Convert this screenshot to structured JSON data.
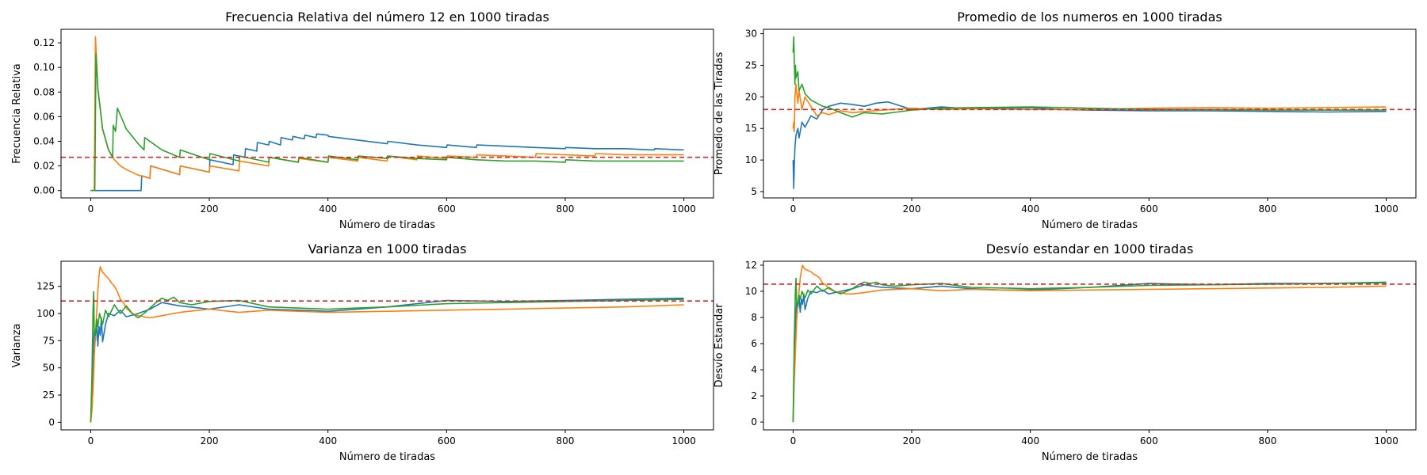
{
  "chart_data": [
    {
      "type": "line",
      "title": "Frecuencia Relativa del número 12 en 1000 tiradas",
      "xlabel": "Número de tiradas",
      "ylabel": "Frecuencia Relativa",
      "xlim": [
        -50,
        1050
      ],
      "ylim": [
        -0.006,
        0.131
      ],
      "xticks": [
        0,
        200,
        400,
        600,
        800,
        1000
      ],
      "yticks": [
        0.0,
        0.02,
        0.04,
        0.06,
        0.08,
        0.1,
        0.12
      ],
      "ytick_labels": [
        "0.00",
        "0.02",
        "0.04",
        "0.06",
        "0.08",
        "0.10",
        "0.12"
      ],
      "reference_line": {
        "y": 0.027,
        "color": "#d62728",
        "style": "dashed"
      },
      "series": [
        {
          "color": "#1f77b4",
          "x": [
            0,
            85,
            86,
            100,
            101,
            150,
            151,
            200,
            201,
            240,
            241,
            260,
            261,
            280,
            281,
            300,
            301,
            320,
            321,
            340,
            341,
            360,
            361,
            380,
            381,
            400,
            401,
            450,
            500,
            501,
            550,
            600,
            601,
            650,
            651,
            700,
            750,
            800,
            801,
            850,
            900,
            950,
            951,
            1000
          ],
          "y": [
            0,
            0,
            0.012,
            0.01,
            0.02,
            0.013,
            0.02,
            0.015,
            0.025,
            0.021,
            0.029,
            0.027,
            0.034,
            0.032,
            0.039,
            0.037,
            0.04,
            0.037,
            0.043,
            0.041,
            0.044,
            0.042,
            0.045,
            0.043,
            0.046,
            0.045,
            0.044,
            0.041,
            0.038,
            0.04,
            0.037,
            0.035,
            0.037,
            0.035,
            0.037,
            0.036,
            0.035,
            0.034,
            0.035,
            0.034,
            0.034,
            0.033,
            0.034,
            0.033
          ]
        },
        {
          "color": "#ff7f0e",
          "x": [
            0,
            6,
            8,
            12,
            20,
            30,
            40,
            50,
            60,
            80,
            100,
            101,
            150,
            151,
            200,
            201,
            250,
            251,
            300,
            301,
            350,
            351,
            400,
            401,
            450,
            451,
            500,
            501,
            550,
            551,
            600,
            601,
            650,
            651,
            700,
            750,
            751,
            800,
            850,
            851,
            900,
            950,
            1000
          ],
          "y": [
            0,
            0,
            0.125,
            0.083,
            0.05,
            0.033,
            0.025,
            0.02,
            0.017,
            0.0125,
            0.01,
            0.02,
            0.013,
            0.02,
            0.015,
            0.02,
            0.016,
            0.024,
            0.02,
            0.027,
            0.023,
            0.026,
            0.023,
            0.027,
            0.024,
            0.027,
            0.024,
            0.028,
            0.025,
            0.028,
            0.026,
            0.028,
            0.027,
            0.029,
            0.028,
            0.027,
            0.03,
            0.029,
            0.028,
            0.03,
            0.029,
            0.029,
            0.029
          ]
        },
        {
          "color": "#2ca02c",
          "x": [
            0,
            7,
            9,
            12,
            20,
            30,
            37,
            38,
            41,
            42,
            45,
            60,
            80,
            90,
            91,
            120,
            150,
            151,
            200,
            201,
            250,
            251,
            300,
            301,
            350,
            351,
            400,
            401,
            450,
            451,
            500,
            501,
            550,
            600,
            601,
            650,
            700,
            750,
            800,
            801,
            850,
            900,
            950,
            1000
          ],
          "y": [
            0,
            0,
            0.111,
            0.083,
            0.05,
            0.033,
            0.027,
            0.053,
            0.049,
            0.048,
            0.067,
            0.05,
            0.038,
            0.033,
            0.043,
            0.033,
            0.027,
            0.033,
            0.025,
            0.03,
            0.024,
            0.028,
            0.023,
            0.027,
            0.023,
            0.027,
            0.023,
            0.028,
            0.025,
            0.028,
            0.026,
            0.028,
            0.026,
            0.025,
            0.027,
            0.025,
            0.024,
            0.024,
            0.023,
            0.025,
            0.024,
            0.024,
            0.024,
            0.024
          ]
        }
      ]
    },
    {
      "type": "line",
      "title": "Promedio de los numeros en 1000 tiradas",
      "xlabel": "Número de tiradas",
      "ylabel": "Promedio de las Tiradas",
      "xlim": [
        -50,
        1050
      ],
      "ylim": [
        4.0,
        30.7
      ],
      "xticks": [
        0,
        200,
        400,
        600,
        800,
        1000
      ],
      "yticks": [
        5,
        10,
        15,
        20,
        25,
        30
      ],
      "ytick_labels": [
        "5",
        "10",
        "15",
        "20",
        "25",
        "30"
      ],
      "reference_line": {
        "y": 18.0,
        "color": "#d62728",
        "style": "dashed"
      },
      "series": [
        {
          "color": "#1f77b4",
          "x": [
            0,
            1,
            2,
            3,
            5,
            8,
            10,
            15,
            20,
            30,
            40,
            50,
            60,
            80,
            100,
            120,
            140,
            160,
            180,
            200,
            250,
            300,
            350,
            400,
            450,
            500,
            600,
            700,
            800,
            900,
            1000
          ],
          "y": [
            10,
            5.5,
            9,
            12,
            14,
            15,
            13.5,
            16,
            15.2,
            17,
            16.5,
            18,
            18.5,
            19,
            18.8,
            18.5,
            19,
            19.2,
            18.6,
            18,
            18.4,
            18.1,
            18.2,
            18.3,
            18.0,
            17.9,
            17.8,
            17.8,
            17.7,
            17.6,
            17.7
          ]
        },
        {
          "color": "#ff7f0e",
          "x": [
            0,
            1,
            2,
            3,
            5,
            8,
            10,
            15,
            20,
            30,
            40,
            50,
            60,
            80,
            100,
            150,
            200,
            250,
            300,
            400,
            500,
            600,
            700,
            800,
            900,
            1000
          ],
          "y": [
            15,
            16,
            14.5,
            20,
            22,
            19,
            21,
            18,
            20,
            18.5,
            17,
            17.5,
            17.2,
            17.8,
            17.5,
            17.9,
            18.2,
            18.0,
            18.1,
            18.0,
            18.0,
            18.2,
            18.3,
            18.2,
            18.3,
            18.4
          ]
        },
        {
          "color": "#2ca02c",
          "x": [
            0,
            1,
            2,
            3,
            4,
            5,
            8,
            10,
            15,
            20,
            30,
            40,
            50,
            60,
            80,
            100,
            120,
            150,
            200,
            250,
            300,
            400,
            500,
            600,
            700,
            800,
            900,
            1000
          ],
          "y": [
            27,
            29.5,
            26,
            22,
            25,
            23,
            24,
            21,
            22,
            20.5,
            19.5,
            19,
            18.5,
            18.3,
            17.5,
            16.8,
            17.5,
            17.3,
            17.9,
            18.2,
            18.3,
            18.4,
            18.2,
            18.0,
            18.0,
            17.9,
            17.9,
            17.9
          ]
        }
      ]
    },
    {
      "type": "line",
      "title": "Varianza en 1000 tiradas",
      "xlabel": "Número de tiradas",
      "ylabel": "Varianza",
      "xlim": [
        -50,
        1050
      ],
      "ylim": [
        -7,
        148
      ],
      "xticks": [
        0,
        200,
        400,
        600,
        800,
        1000
      ],
      "yticks": [
        0,
        25,
        50,
        75,
        100,
        125
      ],
      "ytick_labels": [
        "0",
        "25",
        "50",
        "75",
        "100",
        "125"
      ],
      "reference_line": {
        "y": 111.5,
        "color": "#d62728",
        "style": "dashed"
      },
      "series": [
        {
          "color": "#1f77b4",
          "x": [
            0,
            2,
            4,
            6,
            8,
            10,
            12,
            14,
            16,
            18,
            20,
            25,
            30,
            40,
            50,
            60,
            80,
            100,
            120,
            150,
            200,
            250,
            300,
            350,
            400,
            450,
            500,
            600,
            700,
            800,
            900,
            1000
          ],
          "y": [
            0,
            20,
            60,
            85,
            75,
            95,
            70,
            88,
            80,
            96,
            74,
            90,
            100,
            98,
            103,
            97,
            100,
            104,
            110,
            107,
            104,
            108,
            104,
            103,
            102,
            104,
            106,
            112,
            111,
            112,
            113,
            114
          ]
        },
        {
          "color": "#ff7f0e",
          "x": [
            0,
            2,
            4,
            6,
            8,
            10,
            12,
            14,
            16,
            18,
            20,
            25,
            30,
            35,
            40,
            45,
            50,
            55,
            60,
            70,
            80,
            90,
            100,
            120,
            150,
            200,
            250,
            300,
            400,
            500,
            600,
            700,
            800,
            900,
            1000
          ],
          "y": [
            0,
            10,
            30,
            60,
            80,
            100,
            120,
            135,
            143,
            140,
            138,
            135,
            132,
            128,
            125,
            120,
            113,
            110,
            105,
            100,
            98,
            97,
            96,
            98,
            101,
            104,
            101,
            103,
            101,
            102,
            103,
            104,
            105,
            106,
            108
          ]
        },
        {
          "color": "#2ca02c",
          "x": [
            0,
            2,
            4,
            5,
            6,
            8,
            10,
            12,
            15,
            20,
            25,
            30,
            40,
            50,
            60,
            70,
            80,
            90,
            100,
            110,
            120,
            130,
            140,
            150,
            170,
            200,
            250,
            300,
            350,
            400,
            450,
            500,
            600,
            700,
            800,
            900,
            1000
          ],
          "y": [
            0,
            40,
            105,
            120,
            85,
            80,
            95,
            88,
            100,
            90,
            103,
            97,
            108,
            100,
            107,
            100,
            96,
            100,
            105,
            110,
            114,
            112,
            115,
            110,
            108,
            111,
            112,
            106,
            105,
            104,
            105,
            106,
            109,
            110,
            111,
            112,
            113
          ]
        }
      ]
    },
    {
      "type": "line",
      "title": "Desvío estandar en 1000 tiradas",
      "xlabel": "Número de tiradas",
      "ylabel": "Desvío Estandar",
      "xlim": [
        -50,
        1050
      ],
      "ylim": [
        -0.6,
        12.3
      ],
      "xticks": [
        0,
        200,
        400,
        600,
        800,
        1000
      ],
      "yticks": [
        0,
        2,
        4,
        6,
        8,
        10,
        12
      ],
      "ytick_labels": [
        "0",
        "2",
        "4",
        "6",
        "8",
        "10",
        "12"
      ],
      "reference_line": {
        "y": 10.55,
        "color": "#d62728",
        "style": "dashed"
      },
      "series": [
        {
          "color": "#1f77b4",
          "x": [
            0,
            2,
            4,
            6,
            8,
            10,
            12,
            14,
            16,
            18,
            20,
            25,
            30,
            40,
            50,
            60,
            80,
            100,
            120,
            150,
            200,
            250,
            300,
            350,
            400,
            450,
            500,
            600,
            700,
            800,
            900,
            1000
          ],
          "y": [
            0,
            4.5,
            7.7,
            9.2,
            8.7,
            9.7,
            8.4,
            9.4,
            9,
            9.8,
            8.6,
            9.5,
            10,
            9.9,
            10.1,
            9.8,
            10,
            10.2,
            10.5,
            10.3,
            10.2,
            10.4,
            10.2,
            10.1,
            10.1,
            10.2,
            10.3,
            10.6,
            10.5,
            10.6,
            10.6,
            10.7
          ]
        },
        {
          "color": "#ff7f0e",
          "x": [
            0,
            2,
            4,
            6,
            8,
            10,
            12,
            14,
            16,
            18,
            20,
            25,
            30,
            35,
            40,
            45,
            50,
            55,
            60,
            70,
            80,
            90,
            100,
            120,
            150,
            200,
            250,
            300,
            400,
            500,
            600,
            700,
            800,
            900,
            1000
          ],
          "y": [
            0,
            3.2,
            5.5,
            7.7,
            8.9,
            10,
            11,
            11.6,
            12,
            11.8,
            11.7,
            11.6,
            11.5,
            11.3,
            11.2,
            11,
            10.6,
            10.5,
            10.2,
            10,
            9.9,
            9.8,
            9.8,
            9.9,
            10.1,
            10.2,
            10.05,
            10.15,
            10.05,
            10.1,
            10.15,
            10.2,
            10.25,
            10.3,
            10.4
          ]
        },
        {
          "color": "#2ca02c",
          "x": [
            0,
            2,
            4,
            5,
            6,
            8,
            10,
            12,
            15,
            20,
            25,
            30,
            40,
            50,
            60,
            70,
            80,
            90,
            100,
            110,
            120,
            130,
            140,
            150,
            170,
            200,
            250,
            300,
            350,
            400,
            450,
            500,
            600,
            700,
            800,
            900,
            1000
          ],
          "y": [
            0,
            6.3,
            10.2,
            11,
            9.2,
            8.9,
            9.7,
            9.4,
            10,
            9.5,
            10.1,
            9.8,
            10.4,
            10,
            10.3,
            10,
            9.8,
            10,
            10.2,
            10.5,
            10.7,
            10.6,
            10.7,
            10.5,
            10.4,
            10.5,
            10.6,
            10.3,
            10.25,
            10.2,
            10.25,
            10.3,
            10.45,
            10.5,
            10.55,
            10.6,
            10.65
          ]
        }
      ]
    }
  ]
}
